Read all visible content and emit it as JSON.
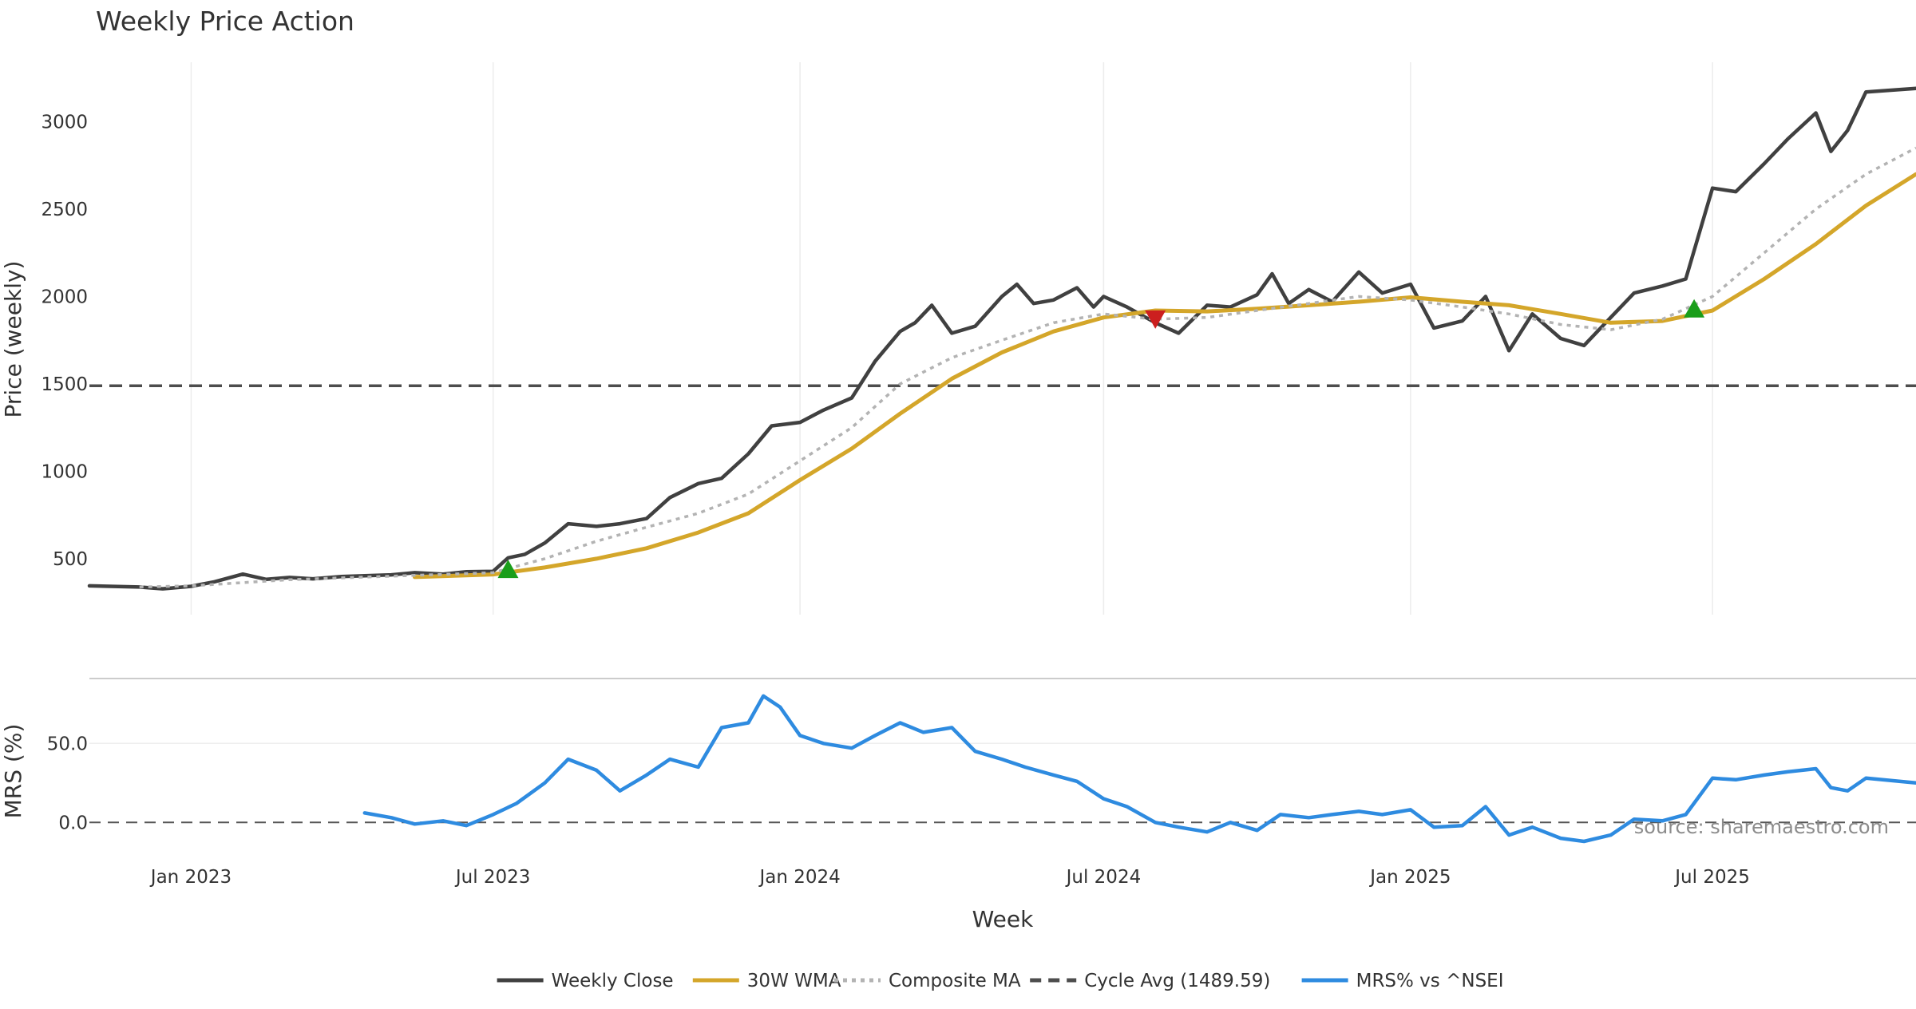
{
  "chart_data": {
    "type": "line",
    "title": "Weekly Price Action",
    "xlabel": "Week",
    "x_ticks": [
      "2023-01-01",
      "2023-07-01",
      "2024-01-01",
      "2024-07-01",
      "2025-01-01",
      "2025-07-01"
    ],
    "x_tick_labels": [
      "Jan 2023",
      "Jul 2023",
      "Jan 2024",
      "Jul 2024",
      "Jan 2025",
      "Jul 2025"
    ],
    "x_range": [
      "2022-11-01",
      "2025-10-31"
    ],
    "source_note": "source: sharemaestro.com",
    "price_panel": {
      "ylabel": "Price (weekly)",
      "ylim": [
        180,
        3340
      ],
      "y_ticks": [
        500,
        1000,
        1500,
        2000,
        2500,
        3000
      ],
      "y_tick_labels": [
        "500",
        "1000",
        "1500",
        "2000",
        "2500",
        "3000"
      ],
      "grid": "vertical",
      "series": [
        {
          "name": "Weekly Close",
          "color": "#404040",
          "style": "solid",
          "points": [
            [
              "2022-11-01",
              345
            ],
            [
              "2022-12-01",
              338
            ],
            [
              "2022-12-15",
              328
            ],
            [
              "2023-01-01",
              342
            ],
            [
              "2023-01-15",
              368
            ],
            [
              "2023-02-01",
              412
            ],
            [
              "2023-02-15",
              382
            ],
            [
              "2023-03-01",
              393
            ],
            [
              "2023-03-15",
              385
            ],
            [
              "2023-04-01",
              398
            ],
            [
              "2023-05-01",
              408
            ],
            [
              "2023-05-15",
              420
            ],
            [
              "2023-06-01",
              412
            ],
            [
              "2023-06-15",
              425
            ],
            [
              "2023-07-01",
              428
            ],
            [
              "2023-07-10",
              505
            ],
            [
              "2023-07-20",
              525
            ],
            [
              "2023-08-01",
              590
            ],
            [
              "2023-08-15",
              700
            ],
            [
              "2023-09-01",
              685
            ],
            [
              "2023-09-15",
              700
            ],
            [
              "2023-10-01",
              730
            ],
            [
              "2023-10-15",
              850
            ],
            [
              "2023-11-01",
              930
            ],
            [
              "2023-11-15",
              960
            ],
            [
              "2023-12-01",
              1100
            ],
            [
              "2023-12-15",
              1260
            ],
            [
              "2024-01-01",
              1280
            ],
            [
              "2024-01-15",
              1350
            ],
            [
              "2024-02-01",
              1420
            ],
            [
              "2024-02-15",
              1630
            ],
            [
              "2024-03-01",
              1800
            ],
            [
              "2024-03-10",
              1850
            ],
            [
              "2024-03-20",
              1950
            ],
            [
              "2024-04-01",
              1790
            ],
            [
              "2024-04-15",
              1830
            ],
            [
              "2024-05-01",
              2000
            ],
            [
              "2024-05-10",
              2070
            ],
            [
              "2024-05-20",
              1960
            ],
            [
              "2024-06-01",
              1980
            ],
            [
              "2024-06-15",
              2050
            ],
            [
              "2024-06-25",
              1940
            ],
            [
              "2024-07-01",
              2000
            ],
            [
              "2024-07-15",
              1940
            ],
            [
              "2024-08-01",
              1850
            ],
            [
              "2024-08-15",
              1790
            ],
            [
              "2024-09-01",
              1950
            ],
            [
              "2024-09-15",
              1940
            ],
            [
              "2024-10-01",
              2010
            ],
            [
              "2024-10-10",
              2130
            ],
            [
              "2024-10-20",
              1960
            ],
            [
              "2024-11-01",
              2040
            ],
            [
              "2024-11-15",
              1970
            ],
            [
              "2024-12-01",
              2140
            ],
            [
              "2024-12-15",
              2020
            ],
            [
              "2025-01-01",
              2070
            ],
            [
              "2025-01-15",
              1820
            ],
            [
              "2025-02-01",
              1860
            ],
            [
              "2025-02-15",
              2000
            ],
            [
              "2025-03-01",
              1690
            ],
            [
              "2025-03-15",
              1900
            ],
            [
              "2025-04-01",
              1760
            ],
            [
              "2025-04-15",
              1720
            ],
            [
              "2025-05-01",
              1880
            ],
            [
              "2025-05-15",
              2020
            ],
            [
              "2025-06-01",
              2060
            ],
            [
              "2025-06-15",
              2100
            ],
            [
              "2025-07-01",
              2620
            ],
            [
              "2025-07-15",
              2600
            ],
            [
              "2025-08-01",
              2760
            ],
            [
              "2025-08-15",
              2900
            ],
            [
              "2025-09-01",
              3050
            ],
            [
              "2025-09-10",
              2830
            ],
            [
              "2025-09-20",
              2950
            ],
            [
              "2025-10-01",
              3170
            ],
            [
              "2025-10-31",
              3190
            ]
          ]
        },
        {
          "name": "30W WMA",
          "color": "#d4a62a",
          "style": "solid",
          "points": [
            [
              "2023-05-15",
              395
            ],
            [
              "2023-07-01",
              410
            ],
            [
              "2023-08-01",
              450
            ],
            [
              "2023-09-01",
              500
            ],
            [
              "2023-10-01",
              560
            ],
            [
              "2023-11-01",
              650
            ],
            [
              "2023-12-01",
              760
            ],
            [
              "2024-01-01",
              950
            ],
            [
              "2024-02-01",
              1130
            ],
            [
              "2024-03-01",
              1330
            ],
            [
              "2024-04-01",
              1530
            ],
            [
              "2024-05-01",
              1680
            ],
            [
              "2024-06-01",
              1800
            ],
            [
              "2024-07-01",
              1880
            ],
            [
              "2024-08-01",
              1920
            ],
            [
              "2024-09-01",
              1915
            ],
            [
              "2024-10-01",
              1930
            ],
            [
              "2024-11-01",
              1950
            ],
            [
              "2024-12-01",
              1970
            ],
            [
              "2025-01-01",
              1995
            ],
            [
              "2025-02-01",
              1970
            ],
            [
              "2025-03-01",
              1950
            ],
            [
              "2025-04-01",
              1900
            ],
            [
              "2025-05-01",
              1850
            ],
            [
              "2025-06-01",
              1860
            ],
            [
              "2025-07-01",
              1920
            ],
            [
              "2025-08-01",
              2100
            ],
            [
              "2025-09-01",
              2300
            ],
            [
              "2025-10-01",
              2520
            ],
            [
              "2025-10-31",
              2700
            ]
          ]
        },
        {
          "name": "Composite MA",
          "color": "#b3b3b3",
          "style": "dotted",
          "points": [
            [
              "2022-12-01",
              338
            ],
            [
              "2023-01-01",
              345
            ],
            [
              "2023-03-01",
              380
            ],
            [
              "2023-05-01",
              400
            ],
            [
              "2023-07-01",
              420
            ],
            [
              "2023-08-01",
              500
            ],
            [
              "2023-09-01",
              600
            ],
            [
              "2023-10-01",
              680
            ],
            [
              "2023-11-01",
              760
            ],
            [
              "2023-12-01",
              870
            ],
            [
              "2024-01-01",
              1060
            ],
            [
              "2024-02-01",
              1250
            ],
            [
              "2024-03-01",
              1500
            ],
            [
              "2024-04-01",
              1650
            ],
            [
              "2024-05-01",
              1750
            ],
            [
              "2024-06-01",
              1850
            ],
            [
              "2024-07-01",
              1900
            ],
            [
              "2024-08-01",
              1870
            ],
            [
              "2024-09-01",
              1880
            ],
            [
              "2024-10-01",
              1920
            ],
            [
              "2024-11-01",
              1960
            ],
            [
              "2024-12-01",
              2000
            ],
            [
              "2025-01-01",
              1980
            ],
            [
              "2025-02-01",
              1940
            ],
            [
              "2025-03-01",
              1900
            ],
            [
              "2025-04-01",
              1840
            ],
            [
              "2025-05-01",
              1810
            ],
            [
              "2025-06-01",
              1870
            ],
            [
              "2025-07-01",
              2000
            ],
            [
              "2025-08-01",
              2250
            ],
            [
              "2025-09-01",
              2500
            ],
            [
              "2025-10-01",
              2700
            ],
            [
              "2025-10-31",
              2850
            ]
          ]
        },
        {
          "name": "Cycle Avg (1489.59)",
          "color": "#4d4d4d",
          "style": "dashed",
          "points": [
            [
              "2022-11-01",
              1489.59
            ],
            [
              "2025-10-31",
              1489.59
            ]
          ]
        }
      ],
      "markers": [
        {
          "kind": "buy",
          "color": "#1a9e1a",
          "date": "2023-07-10",
          "value": 440
        },
        {
          "kind": "sell",
          "color": "#cc1f1f",
          "date": "2024-08-01",
          "value": 1870
        },
        {
          "kind": "buy",
          "color": "#1a9e1a",
          "date": "2025-06-20",
          "value": 1930
        }
      ]
    },
    "mrs_panel": {
      "ylabel": "MRS (%)",
      "ylim": [
        -14,
        87
      ],
      "y_ticks": [
        0,
        50
      ],
      "y_tick_labels": [
        "0.0",
        "50.0"
      ],
      "zero_line": "dashed",
      "series": [
        {
          "name": "MRS% vs ^NSEI",
          "color": "#2e8be0",
          "style": "solid",
          "points": [
            [
              "2023-04-15",
              6
            ],
            [
              "2023-05-01",
              3
            ],
            [
              "2023-05-15",
              -1
            ],
            [
              "2023-06-01",
              1
            ],
            [
              "2023-06-15",
              -2
            ],
            [
              "2023-07-01",
              5
            ],
            [
              "2023-07-15",
              12
            ],
            [
              "2023-08-01",
              25
            ],
            [
              "2023-08-15",
              40
            ],
            [
              "2023-09-01",
              33
            ],
            [
              "2023-09-15",
              20
            ],
            [
              "2023-10-01",
              30
            ],
            [
              "2023-10-15",
              40
            ],
            [
              "2023-11-01",
              35
            ],
            [
              "2023-11-15",
              60
            ],
            [
              "2023-12-01",
              63
            ],
            [
              "2023-12-10",
              80
            ],
            [
              "2023-12-20",
              73
            ],
            [
              "2024-01-01",
              55
            ],
            [
              "2024-01-15",
              50
            ],
            [
              "2024-02-01",
              47
            ],
            [
              "2024-02-15",
              55
            ],
            [
              "2024-03-01",
              63
            ],
            [
              "2024-03-15",
              57
            ],
            [
              "2024-04-01",
              60
            ],
            [
              "2024-04-15",
              45
            ],
            [
              "2024-05-01",
              40
            ],
            [
              "2024-05-15",
              35
            ],
            [
              "2024-06-01",
              30
            ],
            [
              "2024-06-15",
              26
            ],
            [
              "2024-07-01",
              15
            ],
            [
              "2024-07-15",
              10
            ],
            [
              "2024-08-01",
              0
            ],
            [
              "2024-08-15",
              -3
            ],
            [
              "2024-09-01",
              -6
            ],
            [
              "2024-09-15",
              0
            ],
            [
              "2024-10-01",
              -5
            ],
            [
              "2024-10-15",
              5
            ],
            [
              "2024-11-01",
              3
            ],
            [
              "2024-11-15",
              5
            ],
            [
              "2024-12-01",
              7
            ],
            [
              "2024-12-15",
              5
            ],
            [
              "2025-01-01",
              8
            ],
            [
              "2025-01-15",
              -3
            ],
            [
              "2025-02-01",
              -2
            ],
            [
              "2025-02-15",
              10
            ],
            [
              "2025-03-01",
              -8
            ],
            [
              "2025-03-15",
              -3
            ],
            [
              "2025-04-01",
              -10
            ],
            [
              "2025-04-15",
              -12
            ],
            [
              "2025-05-01",
              -8
            ],
            [
              "2025-05-15",
              2
            ],
            [
              "2025-06-01",
              1
            ],
            [
              "2025-06-15",
              5
            ],
            [
              "2025-07-01",
              28
            ],
            [
              "2025-07-15",
              27
            ],
            [
              "2025-08-01",
              30
            ],
            [
              "2025-08-15",
              32
            ],
            [
              "2025-09-01",
              34
            ],
            [
              "2025-09-10",
              22
            ],
            [
              "2025-09-20",
              20
            ],
            [
              "2025-10-01",
              28
            ],
            [
              "2025-10-31",
              25
            ]
          ]
        }
      ]
    },
    "legend": {
      "position": "bottom-center",
      "items": [
        {
          "label": "Weekly Close",
          "color": "#404040",
          "style": "solid"
        },
        {
          "label": "30W WMA",
          "color": "#d4a62a",
          "style": "solid"
        },
        {
          "label": "Composite MA",
          "color": "#b3b3b3",
          "style": "dotted"
        },
        {
          "label": "Cycle Avg (1489.59)",
          "color": "#4d4d4d",
          "style": "dashed"
        },
        {
          "label": "MRS% vs ^NSEI",
          "color": "#2e8be0",
          "style": "solid"
        }
      ]
    }
  }
}
